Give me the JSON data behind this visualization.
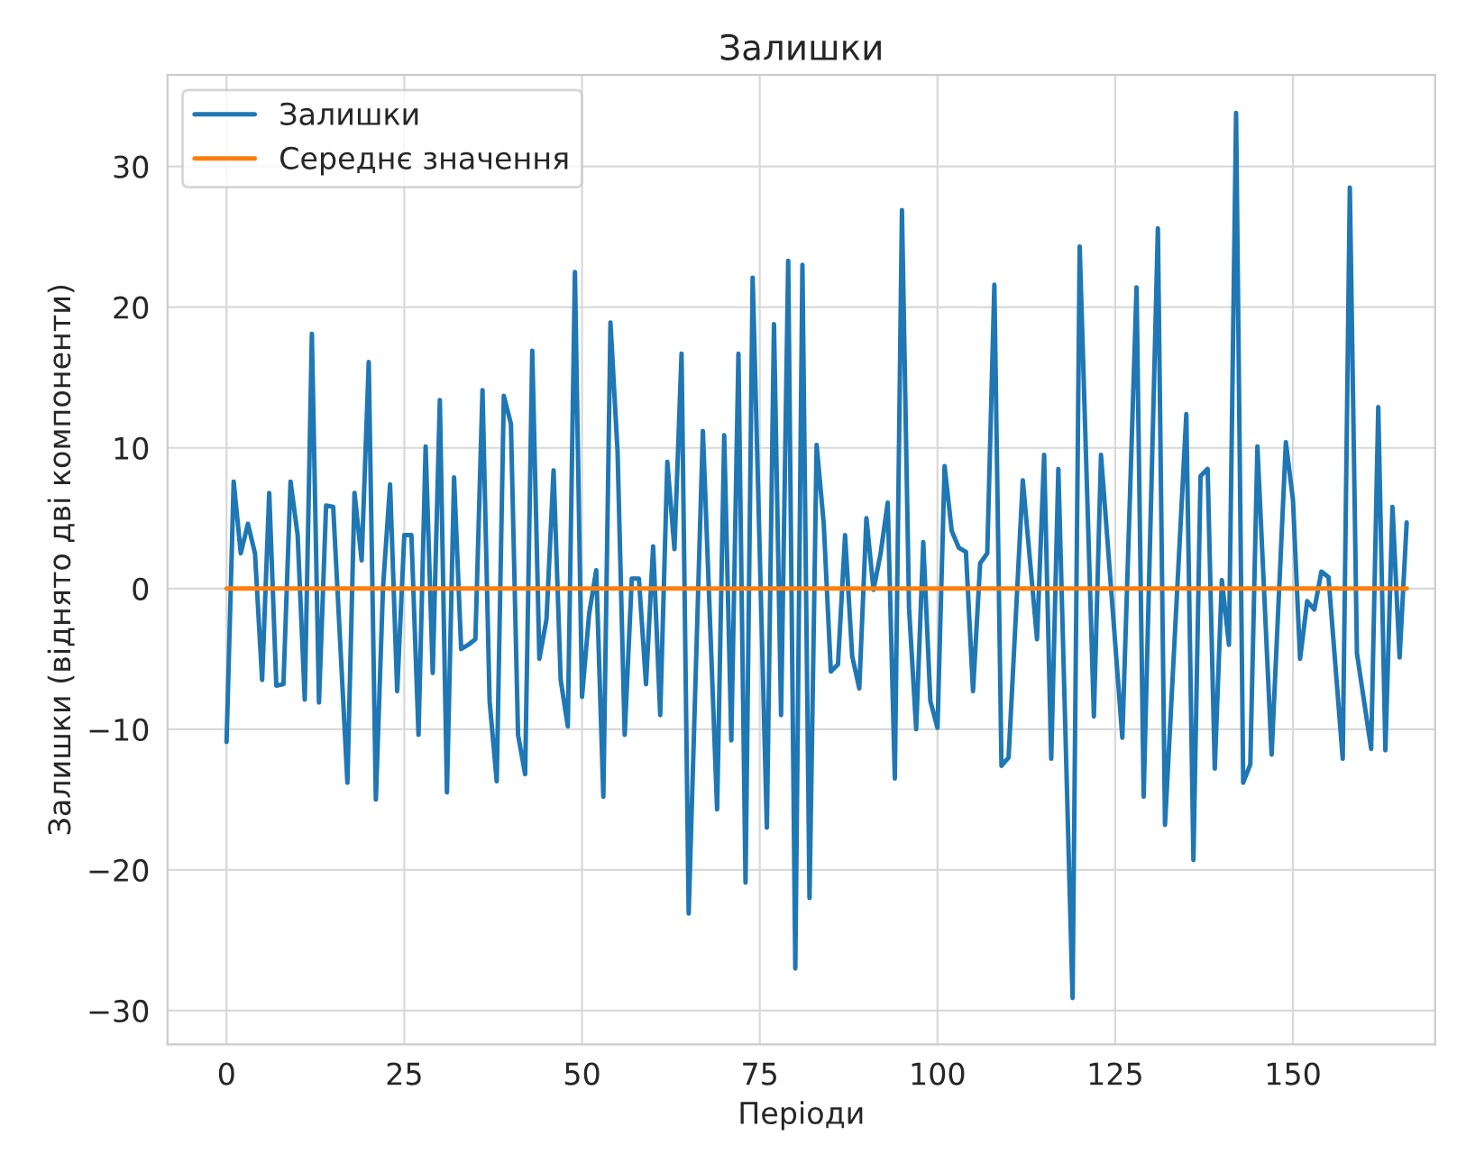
{
  "chart_data": {
    "type": "line",
    "title": "Залишки",
    "xlabel": "Періоди",
    "ylabel": "Залишки (віднято дві компоненти)",
    "series": [
      {
        "name": "Залишки",
        "color": "#1f77b4",
        "x": [
          0,
          1,
          2,
          3,
          4,
          5,
          6,
          7,
          8,
          9,
          10,
          11,
          12,
          13,
          14,
          15,
          16,
          17,
          18,
          19,
          20,
          21,
          22,
          23,
          24,
          25,
          26,
          27,
          28,
          29,
          30,
          31,
          32,
          33,
          34,
          35,
          36,
          37,
          38,
          39,
          40,
          41,
          42,
          43,
          44,
          45,
          46,
          47,
          48,
          49,
          50,
          51,
          52,
          53,
          54,
          55,
          56,
          57,
          58,
          59,
          60,
          61,
          62,
          63,
          64,
          65,
          67,
          69,
          70,
          71,
          72,
          73,
          74,
          76,
          77,
          78,
          79,
          80,
          81,
          82,
          83,
          84,
          85,
          86,
          87,
          88,
          89,
          90,
          91,
          92,
          93,
          94,
          95,
          96,
          97,
          98,
          99,
          100,
          101,
          102,
          103,
          104,
          105,
          106,
          107,
          108,
          109,
          110,
          112,
          114,
          115,
          116,
          117,
          119,
          120,
          122,
          123,
          126,
          128,
          129,
          131,
          132,
          135,
          136,
          137,
          138,
          139,
          140,
          141,
          142,
          143,
          144,
          145,
          147,
          149,
          150,
          151,
          152,
          153,
          154,
          155,
          157,
          158,
          159,
          161,
          162,
          163,
          164,
          165,
          166
        ],
        "values": [
          -10.9,
          7.6,
          2.5,
          4.6,
          2.5,
          -6.5,
          6.8,
          -6.9,
          -6.8,
          7.6,
          3.8,
          -7.9,
          18.1,
          -8.1,
          5.9,
          5.8,
          -4,
          -13.8,
          6.8,
          2,
          16.1,
          -15,
          0,
          7.4,
          -7.3,
          3.8,
          3.8,
          -10.4,
          10.1,
          -6,
          13.4,
          -14.5,
          7.9,
          -4.3,
          -4,
          -3.6,
          14.1,
          -8,
          -13.7,
          13.7,
          11.7,
          -10.4,
          -13.2,
          16.9,
          -5,
          -2.2,
          8.4,
          -6.5,
          -9.8,
          22.5,
          -7.7,
          -1.8,
          1.3,
          -14.8,
          18.9,
          9.7,
          -10.4,
          0.7,
          0.7,
          -6.8,
          3,
          -9,
          9,
          2.8,
          16.7,
          -23.1,
          11.2,
          -15.7,
          10.9,
          -10.8,
          16.7,
          -20.9,
          22.1,
          -17,
          18.8,
          -9,
          23.3,
          -27,
          23,
          -22,
          10.2,
          4.6,
          -5.9,
          -5.4,
          3.8,
          -4.8,
          -7.1,
          5,
          -0.1,
          2.5,
          6.1,
          -13.5,
          26.9,
          -1.4,
          -10,
          3.3,
          -8,
          -9.9,
          8.7,
          4.1,
          2.9,
          2.6,
          -7.3,
          1.8,
          2.5,
          21.6,
          -12.6,
          -12,
          7.7,
          -3.6,
          9.5,
          -12.1,
          8.5,
          -29.1,
          24.3,
          -9.1,
          9.5,
          -10.6,
          21.4,
          -14.8,
          25.6,
          -16.8,
          12.4,
          -19.3,
          8,
          8.5,
          -12.8,
          0.6,
          -4,
          33.8,
          -13.8,
          -12.5,
          10.1,
          -11.8,
          10.4,
          6.3,
          -5,
          -0.9,
          -1.5,
          1.2,
          0.8,
          -12.1,
          28.5,
          -4.6,
          -11.4,
          12.9,
          -11.5,
          5.8,
          -4.9,
          4.7
        ]
      },
      {
        "name": "Середнє значення",
        "color": "#ff7f0e",
        "x": [
          0,
          166
        ],
        "values": [
          0,
          0
        ]
      }
    ],
    "xlim": [
      -8.3,
      170
    ],
    "ylim": [
      -32.4,
      36.5
    ],
    "xticks": [
      0,
      25,
      50,
      75,
      100,
      125,
      150
    ],
    "yticks": [
      -30,
      -20,
      -10,
      0,
      10,
      20,
      30
    ],
    "grid": true,
    "legend": "top left",
    "line_style": "solid",
    "marker": "none"
  }
}
